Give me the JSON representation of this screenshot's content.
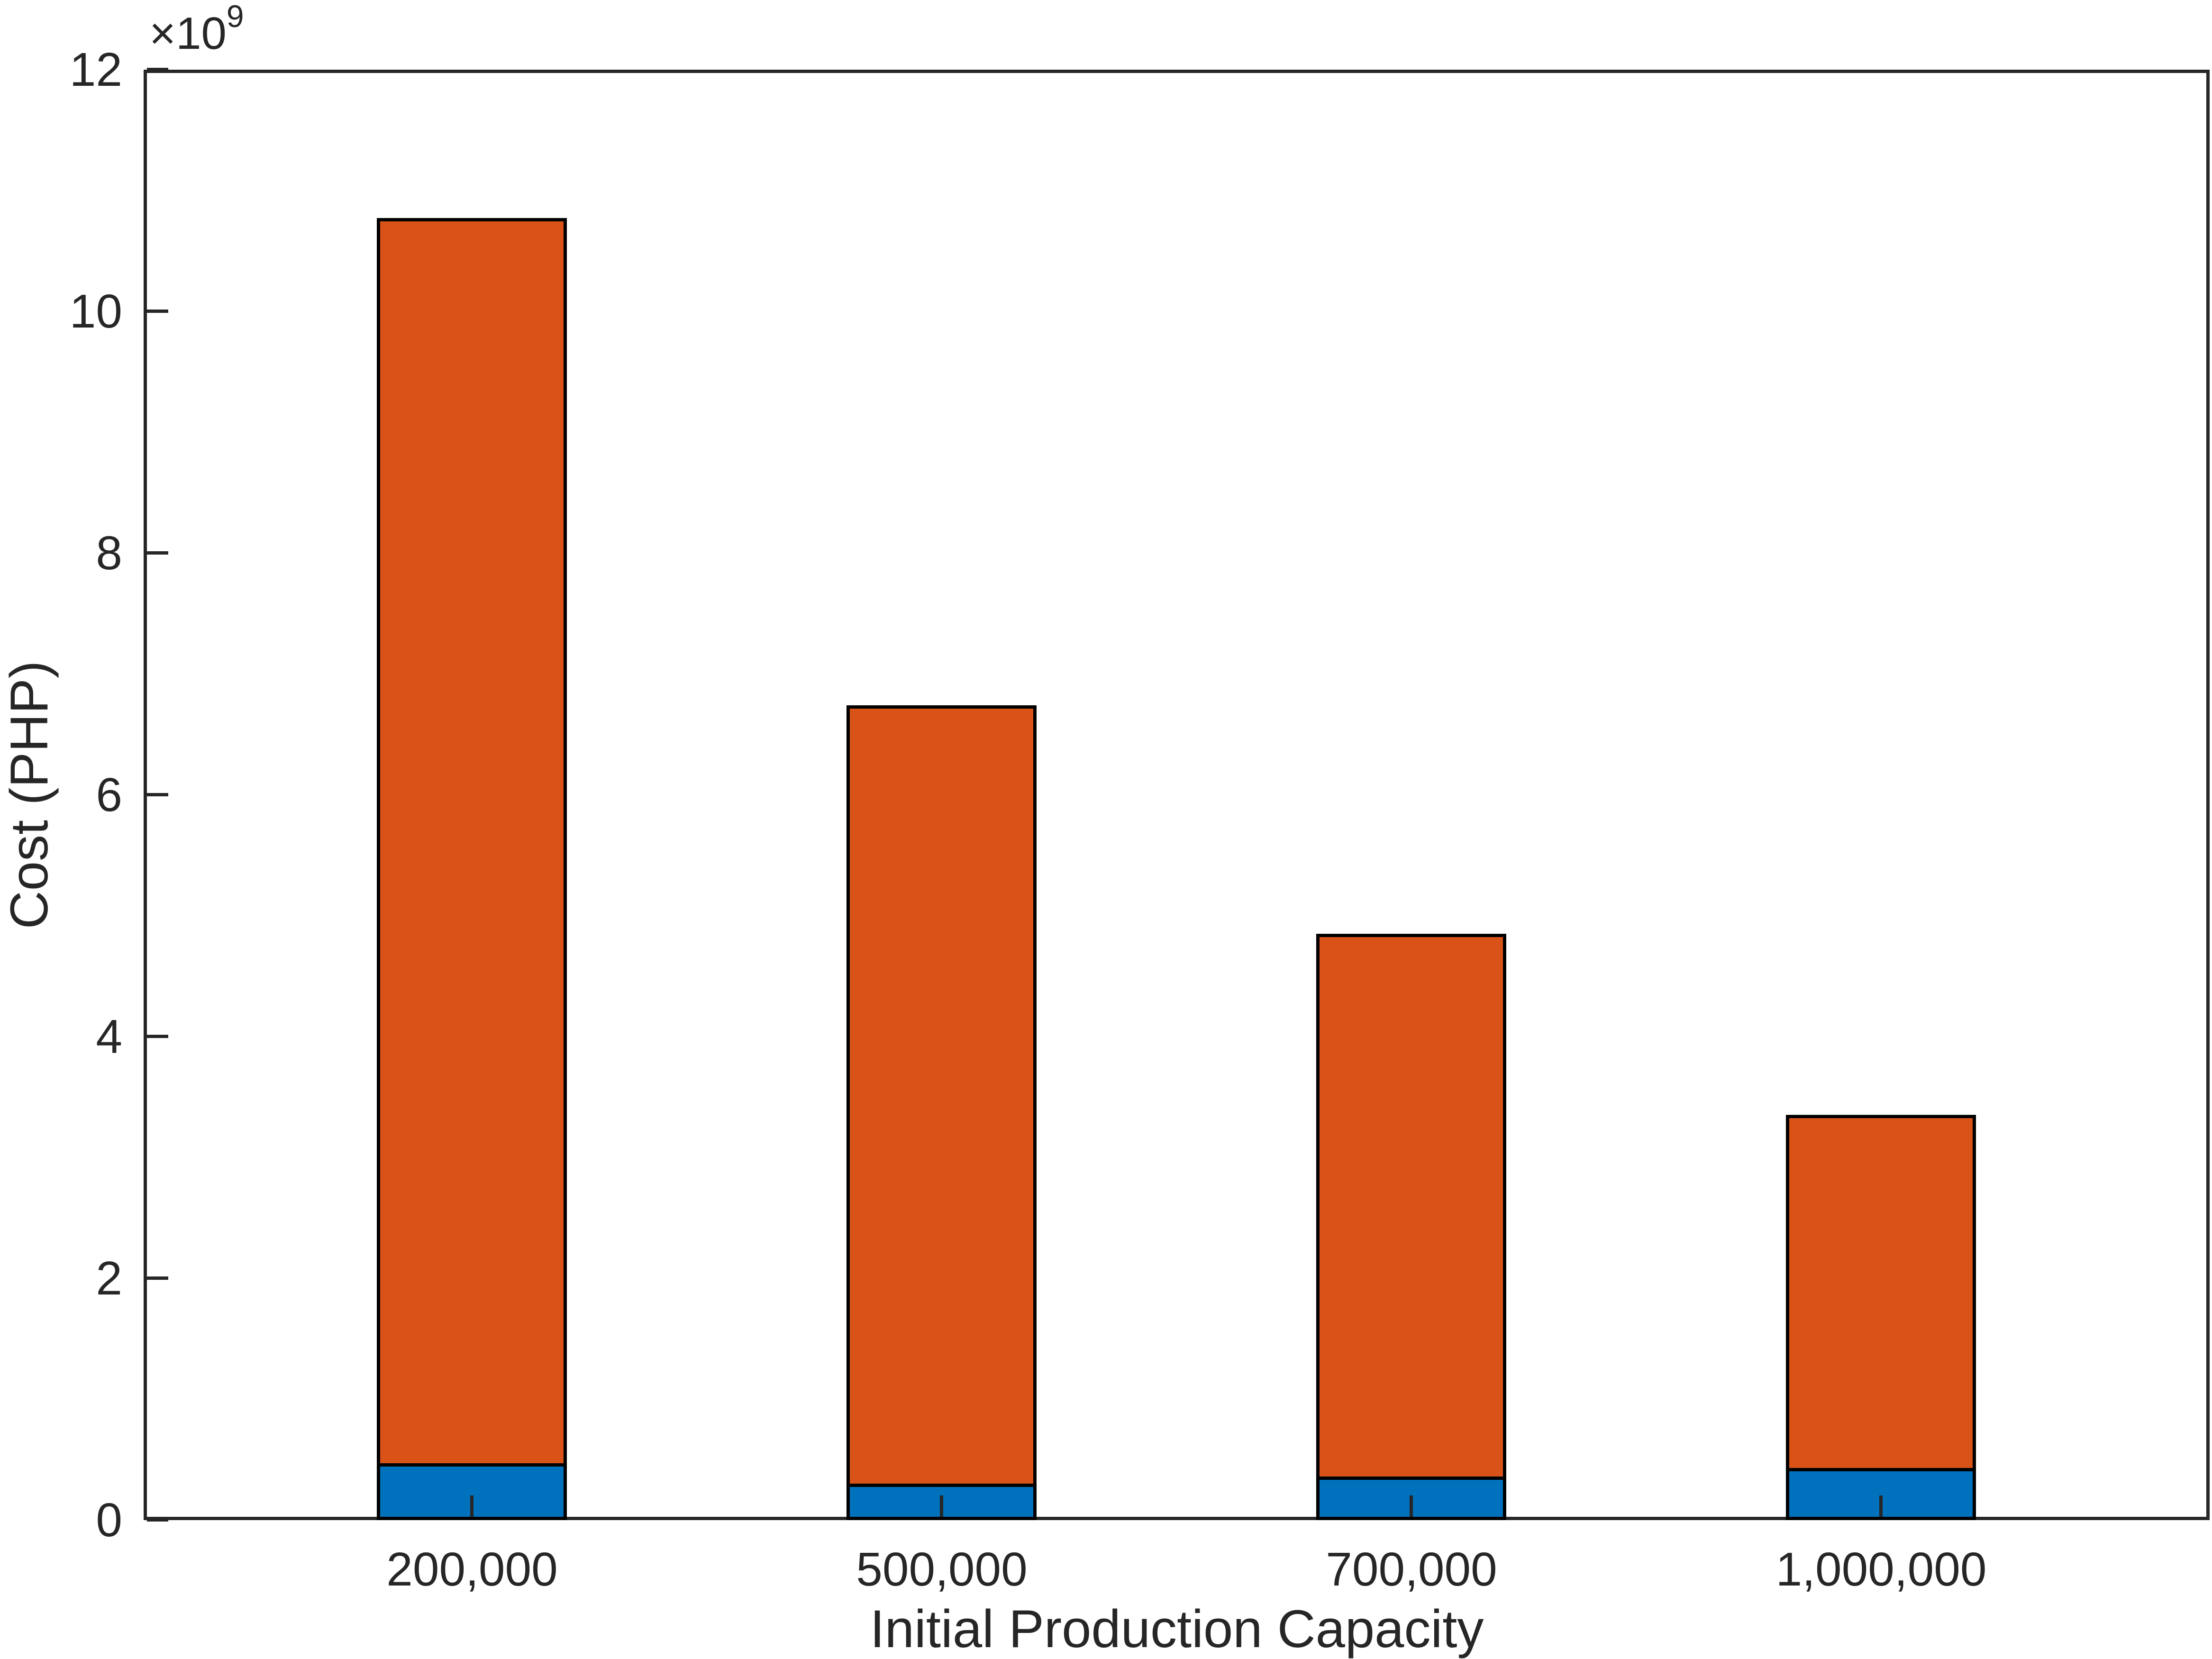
{
  "figure": {
    "background": "#ffffff"
  },
  "chart_data": {
    "type": "bar",
    "stacked": true,
    "title": "",
    "xlabel": "Initial Production Capacity",
    "ylabel": "Cost (PHP)",
    "y_axis_multiplier": {
      "base": "×10",
      "exponent": "9"
    },
    "categories": [
      "200,000",
      "500,000",
      "700,000",
      "1,000,000"
    ],
    "series": [
      {
        "name": "blue-bottom-segment",
        "color": "#0072BD",
        "values_e9": [
          0.47,
          0.3,
          0.36,
          0.43
        ]
      },
      {
        "name": "orange-top-segment",
        "color": "#D95319",
        "values_e9": [
          10.3,
          6.44,
          4.49,
          2.92
        ]
      }
    ],
    "stack_totals_e9": [
      10.77,
      6.74,
      4.85,
      3.35
    ],
    "yticks": [
      0,
      2,
      4,
      6,
      8,
      10,
      12
    ],
    "ylim": [
      0,
      12
    ],
    "xlim": [
      0.3,
      4.7
    ],
    "x_positions": [
      1,
      2,
      3,
      4
    ],
    "bar_width_units": 0.405,
    "grid": false,
    "legend": "none",
    "bar_edge_color": "#000000",
    "axis_color": "#262626"
  }
}
